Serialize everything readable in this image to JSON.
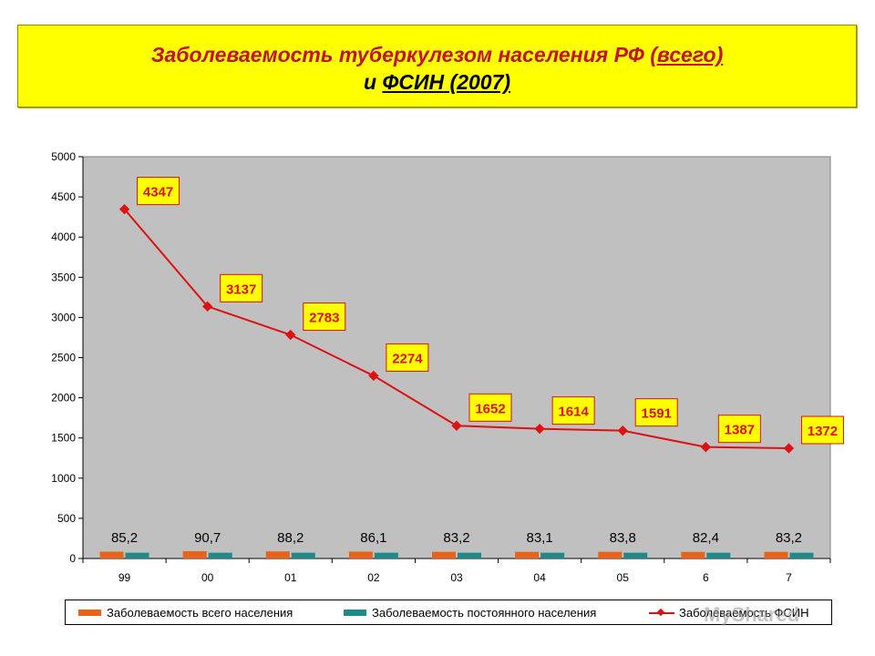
{
  "title": {
    "line1_prefix": "Заболеваемость туберкулезом населения РФ ",
    "line1_underlined": "(всего)",
    "line2_prefix": "и ",
    "line2_underlined": "ФСИН (2007)"
  },
  "watermark": "MyShared",
  "colors": {
    "series_total": "#e8631a",
    "series_permanent": "#1f8a8a",
    "series_fsin": "#dd1111",
    "plot_bg": "#c0c0c0",
    "label_bg": "#ffff00"
  },
  "chart_data": {
    "type": "bar",
    "categories": [
      "99",
      "00",
      "01",
      "02",
      "03",
      "04",
      "05",
      "6",
      "7"
    ],
    "ylim": [
      0,
      5000
    ],
    "yticks": [
      0,
      500,
      1000,
      1500,
      2000,
      2500,
      3000,
      3500,
      4000,
      4500,
      5000
    ],
    "grid": false,
    "legend_position": "bottom",
    "series": [
      {
        "name": "Заболеваемость всего населения",
        "type": "bar",
        "values": [
          85.2,
          90.7,
          88.2,
          86.1,
          83.2,
          83.1,
          83.8,
          82.4,
          83.2
        ],
        "labels": [
          "85,2",
          "90,7",
          "88,2",
          "86,1",
          "83,2",
          "83,1",
          "83,8",
          "82,4",
          "83,2"
        ]
      },
      {
        "name": "Заболеваемость постоянного населения",
        "type": "bar",
        "values": [
          72,
          72,
          72,
          72,
          72,
          72,
          72,
          72,
          72
        ]
      },
      {
        "name": "Заболеваемость ФСИН",
        "type": "line",
        "values": [
          4347,
          3137,
          2783,
          2274,
          1652,
          1614,
          1591,
          1387,
          1372
        ],
        "labels": [
          "4347",
          "3137",
          "2783",
          "2274",
          "1652",
          "1614",
          "1591",
          "1387",
          "1372"
        ]
      }
    ]
  }
}
